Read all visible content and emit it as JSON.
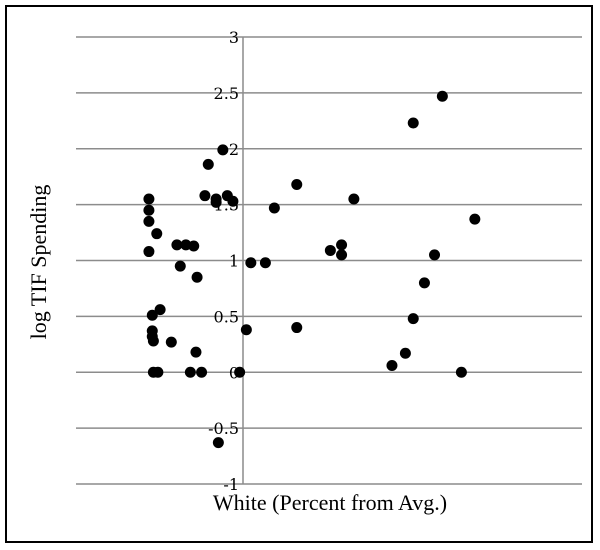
{
  "chart_data": {
    "type": "scatter",
    "title": "",
    "xlabel": "White (Percent from Avg.)",
    "ylabel": "log TIF Spending",
    "ylim": [
      -1,
      3
    ],
    "yticks": [
      "3",
      "2.5",
      "2",
      "1.5",
      "1",
      "0.5",
      "0",
      "-0.5",
      "-1"
    ],
    "xlim": [
      -1,
      3
    ],
    "grid": true,
    "series": [
      {
        "points": [
          {
            "x": -0.84,
            "y": 1.55
          },
          {
            "x": -0.84,
            "y": 1.45
          },
          {
            "x": -0.84,
            "y": 1.35
          },
          {
            "x": -0.84,
            "y": 1.08
          },
          {
            "x": -0.77,
            "y": 1.24
          },
          {
            "x": -0.81,
            "y": 0.51
          },
          {
            "x": -0.74,
            "y": 0.56
          },
          {
            "x": -0.81,
            "y": 0.37
          },
          {
            "x": -0.81,
            "y": 0.32
          },
          {
            "x": -0.8,
            "y": 0.28
          },
          {
            "x": -0.8,
            "y": 0.0
          },
          {
            "x": -0.76,
            "y": 0.0
          },
          {
            "x": -0.64,
            "y": 0.27
          },
          {
            "x": -0.59,
            "y": 1.14
          },
          {
            "x": -0.56,
            "y": 0.95
          },
          {
            "x": -0.51,
            "y": 1.14
          },
          {
            "x": -0.44,
            "y": 1.13
          },
          {
            "x": -0.41,
            "y": 0.85
          },
          {
            "x": -0.42,
            "y": 0.18
          },
          {
            "x": -0.47,
            "y": 0.0
          },
          {
            "x": -0.37,
            "y": 0.0
          },
          {
            "x": -0.31,
            "y": 1.86
          },
          {
            "x": -0.34,
            "y": 1.58
          },
          {
            "x": -0.24,
            "y": 1.52
          },
          {
            "x": -0.24,
            "y": 1.55
          },
          {
            "x": -0.18,
            "y": 1.99
          },
          {
            "x": -0.14,
            "y": 1.58
          },
          {
            "x": -0.09,
            "y": 1.53
          },
          {
            "x": -0.03,
            "y": 0.0
          },
          {
            "x": 0.03,
            "y": 0.38
          },
          {
            "x": 0.07,
            "y": 0.98
          },
          {
            "x": 0.2,
            "y": 0.98
          },
          {
            "x": 0.28,
            "y": 1.47
          },
          {
            "x": 0.48,
            "y": 1.68
          },
          {
            "x": 0.48,
            "y": 0.4
          },
          {
            "x": 0.78,
            "y": 1.09
          },
          {
            "x": 0.88,
            "y": 1.14
          },
          {
            "x": 0.88,
            "y": 1.05
          },
          {
            "x": 0.99,
            "y": 1.55
          },
          {
            "x": 1.33,
            "y": 0.06
          },
          {
            "x": 1.45,
            "y": 0.17
          },
          {
            "x": 1.52,
            "y": 0.48
          },
          {
            "x": 1.62,
            "y": 0.8
          },
          {
            "x": 1.71,
            "y": 1.05
          },
          {
            "x": 1.52,
            "y": 2.23
          },
          {
            "x": 1.78,
            "y": 2.47
          },
          {
            "x": 1.95,
            "y": 0.0
          },
          {
            "x": 2.07,
            "y": 1.37
          },
          {
            "x": -0.22,
            "y": -0.63
          }
        ]
      }
    ]
  }
}
